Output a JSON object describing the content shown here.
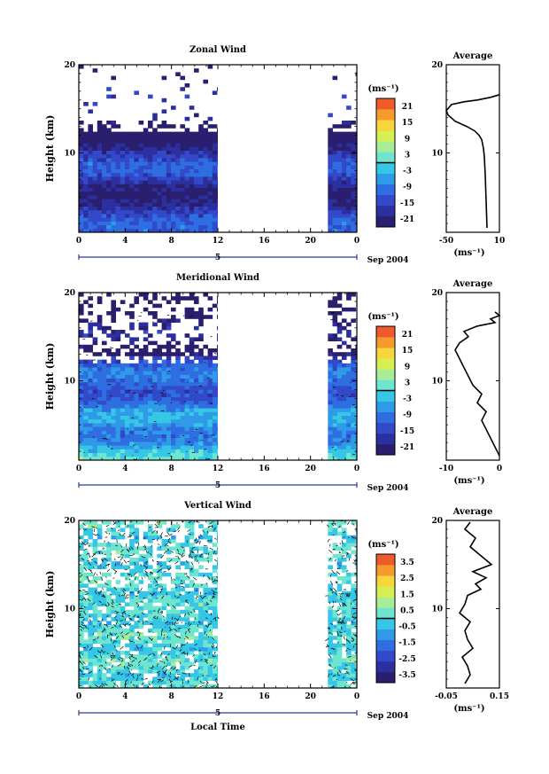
{
  "x_axis_label": "Local Time",
  "date_label": "Sep 2004",
  "day_label": "5",
  "x_ticks": [
    "0",
    "4",
    "8",
    "12",
    "16",
    "20",
    "0"
  ],
  "y_label": "Height (km)",
  "y_ticks": [
    "20",
    "10"
  ],
  "unit_label": "(ms⁻¹)",
  "average_title": "Average",
  "panels": [
    {
      "title": "Zonal Wind",
      "colorbar_ticks": [
        "21",
        "15",
        "9",
        "3",
        "-3",
        "-9",
        "-15",
        "-21"
      ],
      "average_ticks": [
        "-50",
        "10"
      ],
      "base": 0.18,
      "range": [
        -24,
        24
      ]
    },
    {
      "title": "Meridional Wind",
      "colorbar_ticks": [
        "21",
        "15",
        "9",
        "3",
        "-3",
        "-9",
        "-15",
        "-21"
      ],
      "average_ticks": [
        "-10",
        "0"
      ],
      "base": 0.36,
      "range": [
        -24,
        24
      ]
    },
    {
      "title": "Vertical Wind",
      "colorbar_ticks": [
        "3.5",
        "2.5",
        "1.5",
        "0.5",
        "-0.5",
        "-1.5",
        "-2.5",
        "-3.5"
      ],
      "average_ticks": [
        "-0.05",
        "0.15"
      ],
      "base": 0.48,
      "range": [
        -4,
        4
      ]
    }
  ],
  "chart_data": [
    {
      "type": "heatmap",
      "title": "Zonal Wind",
      "x": [
        0,
        12,
        24
      ],
      "xlabel": "Local Time",
      "ylabel": "Height (km)",
      "ylim": [
        1,
        20
      ],
      "colorbar_range": [
        -24,
        24
      ],
      "data_gap_hours": [
        12,
        21.5
      ]
    },
    {
      "type": "line",
      "title": "Average",
      "xlabel": "(ms⁻¹)",
      "xlim": [
        -50,
        10
      ],
      "ylim": [
        1,
        20
      ],
      "x": [
        -4,
        -4.5,
        -5,
        -5.5,
        -6,
        -6.5,
        -7,
        -8,
        -9,
        -10,
        -13,
        -18,
        -27,
        -40,
        -48,
        -50,
        -44,
        -30,
        -15,
        0,
        10
      ],
      "y": [
        1.5,
        3,
        4.5,
        6,
        7.5,
        8.5,
        9.5,
        10.5,
        11,
        11.5,
        12,
        12.5,
        13,
        13.6,
        14.3,
        14.8,
        15.5,
        15.8,
        16,
        16.3,
        16.6
      ]
    },
    {
      "type": "heatmap",
      "title": "Meridional Wind",
      "x": [
        0,
        12,
        24
      ],
      "xlabel": "Local Time",
      "ylabel": "Height (km)",
      "ylim": [
        1,
        20
      ],
      "colorbar_range": [
        -24,
        24
      ],
      "data_gap_hours": [
        12,
        21.5
      ]
    },
    {
      "type": "line",
      "title": "Average",
      "xlabel": "(ms⁻¹)",
      "xlim": [
        -10,
        2
      ],
      "ylim": [
        1,
        20
      ],
      "x": [
        2,
        1,
        0,
        -1,
        -2,
        -1,
        -3,
        -2,
        -4,
        -5,
        -6,
        -7,
        -8,
        -7,
        -5,
        -6,
        -3,
        1,
        0,
        2,
        1
      ],
      "y": [
        1.5,
        2.5,
        3.5,
        4.5,
        5.5,
        6.5,
        7.5,
        8.5,
        9.5,
        10.5,
        11.5,
        12.5,
        13.5,
        14.3,
        15,
        15.6,
        16.2,
        16.6,
        17,
        17.4,
        17.8
      ]
    },
    {
      "type": "heatmap",
      "title": "Vertical Wind",
      "x": [
        0,
        12,
        24
      ],
      "xlabel": "Local Time",
      "ylabel": "Height (km)",
      "ylim": [
        1,
        20
      ],
      "colorbar_range": [
        -4,
        4
      ],
      "data_gap_hours": [
        12,
        21.5
      ]
    },
    {
      "type": "line",
      "title": "Average",
      "xlabel": "(ms⁻¹)",
      "xlim": [
        -0.05,
        0.15
      ],
      "ylim": [
        1,
        20
      ],
      "x": [
        0.02,
        0.04,
        0.03,
        0.01,
        0.05,
        0.03,
        0.02,
        0.04,
        0.0,
        0.02,
        0.03,
        0.08,
        0.06,
        0.1,
        0.05,
        0.12,
        0.08,
        0.04,
        0.06,
        0.02,
        0.04
      ],
      "y": [
        1.5,
        2.5,
        3.5,
        4.5,
        5.5,
        6.5,
        7.5,
        8.5,
        9.5,
        10.5,
        11.5,
        12.2,
        12.8,
        13.5,
        14.2,
        15,
        16,
        17,
        18,
        19,
        19.8
      ]
    }
  ]
}
